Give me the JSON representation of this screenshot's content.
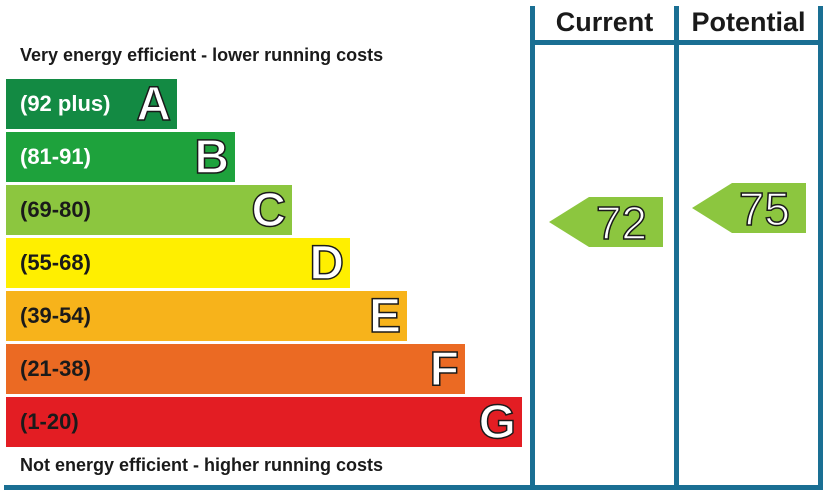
{
  "chart_data": {
    "type": "bar",
    "columns": [
      "Current",
      "Potential"
    ],
    "top_caption": "Very energy efficient - lower running costs",
    "bottom_caption": "Not energy efficient - higher running costs",
    "bands": [
      {
        "letter": "A",
        "range": "(92 plus)",
        "min": 92,
        "max": null,
        "color": "#138a43",
        "text_color": "#ffffff"
      },
      {
        "letter": "B",
        "range": "(81-91)",
        "min": 81,
        "max": 91,
        "color": "#1ea23c",
        "text_color": "#ffffff"
      },
      {
        "letter": "C",
        "range": "(69-80)",
        "min": 69,
        "max": 80,
        "color": "#8cc63f",
        "text_color": "#1a1a1a"
      },
      {
        "letter": "D",
        "range": "(55-68)",
        "min": 55,
        "max": 68,
        "color": "#ffef00",
        "text_color": "#1a1a1a"
      },
      {
        "letter": "E",
        "range": "(39-54)",
        "min": 39,
        "max": 54,
        "color": "#f7b31b",
        "text_color": "#1a1a1a"
      },
      {
        "letter": "F",
        "range": "(21-38)",
        "min": 21,
        "max": 38,
        "color": "#eb6a23",
        "text_color": "#1a1a1a"
      },
      {
        "letter": "G",
        "range": "(1-20)",
        "min": 1,
        "max": 20,
        "color": "#e31d23",
        "text_color": "#1a1a1a"
      }
    ],
    "current": {
      "value": 72,
      "band": "C",
      "color": "#8cc63f"
    },
    "potential": {
      "value": 75,
      "band": "C",
      "color": "#8cc63f"
    }
  }
}
